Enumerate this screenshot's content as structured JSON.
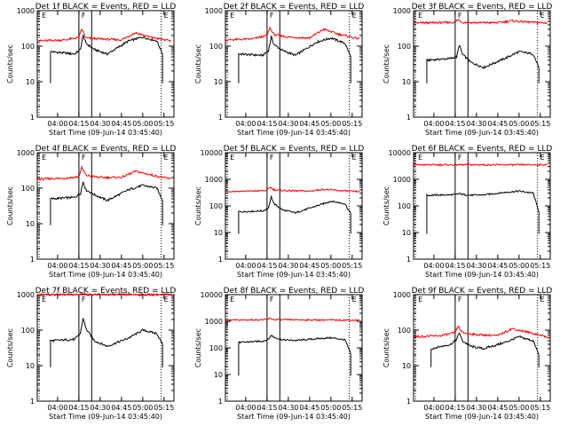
{
  "window": {
    "background": "#ffffff"
  },
  "colors": {
    "events": "#000000",
    "lld": "#ff0000",
    "frame": "#000000"
  },
  "chart_data": [
    {
      "type": "line",
      "title": "Det 1f BLACK = Events, RED = LLD",
      "xlabel": "Start Time (09-Jun-14 03:45:40)",
      "ylabel": "Counts/sec",
      "yscale": "log",
      "ylim": [
        1,
        1000
      ],
      "yticks": [
        "1",
        "10",
        "100",
        "1000"
      ],
      "xlim": [
        "03:45:40",
        "05:22:00"
      ],
      "xticks": [
        "04:00",
        "04:15",
        "04:30",
        "04:45",
        "05:00",
        "05:15"
      ],
      "markers": [
        "E",
        "F",
        "E"
      ],
      "series": [
        {
          "name": "Events",
          "color": "#000000",
          "x": [
            "03:55",
            "04:12",
            "04:16",
            "04:18",
            "04:20",
            "04:26",
            "04:35",
            "04:50",
            "05:00",
            "05:10",
            "05:14"
          ],
          "y": [
            70,
            60,
            80,
            200,
            120,
            80,
            60,
            140,
            180,
            140,
            60
          ]
        },
        {
          "name": "LLD",
          "color": "#ff0000",
          "x": [
            "03:46",
            "04:05",
            "04:15",
            "04:17",
            "04:20",
            "04:30",
            "04:45",
            "04:55",
            "05:05",
            "05:20"
          ],
          "y": [
            140,
            150,
            175,
            300,
            170,
            160,
            150,
            240,
            180,
            140
          ]
        }
      ]
    },
    {
      "type": "line",
      "title": "Det 2f BLACK = Events, RED = LLD",
      "xlabel": "Start Time (09-Jun-14 03:45:40)",
      "ylabel": "Counts/sec",
      "yscale": "log",
      "ylim": [
        1,
        1000
      ],
      "yticks": [
        "1",
        "10",
        "100",
        "1000"
      ],
      "xlim": [
        "03:45:40",
        "05:22:00"
      ],
      "xticks": [
        "04:00",
        "04:15",
        "04:30",
        "04:45",
        "05:00",
        "05:15"
      ],
      "markers": [
        "E",
        "F",
        "E"
      ],
      "series": [
        {
          "name": "Events",
          "color": "#000000",
          "x": [
            "03:55",
            "04:12",
            "04:16",
            "04:18",
            "04:20",
            "04:26",
            "04:35",
            "04:50",
            "05:00",
            "05:10",
            "05:14"
          ],
          "y": [
            60,
            55,
            75,
            180,
            110,
            75,
            55,
            130,
            170,
            120,
            50
          ]
        },
        {
          "name": "LLD",
          "color": "#ff0000",
          "x": [
            "03:46",
            "04:05",
            "04:15",
            "04:17",
            "04:20",
            "04:30",
            "04:45",
            "04:55",
            "05:05",
            "05:20"
          ],
          "y": [
            150,
            160,
            200,
            330,
            210,
            180,
            170,
            300,
            220,
            160
          ]
        }
      ]
    },
    {
      "type": "line",
      "title": "Det 3f BLACK = Events, RED = LLD",
      "xlabel": "Start Time (09-Jun-14 03:45:40)",
      "ylabel": "Counts/sec",
      "yscale": "log",
      "ylim": [
        1,
        1000
      ],
      "yticks": [
        "1",
        "10",
        "100",
        "1000"
      ],
      "xlim": [
        "03:45:40",
        "05:22:00"
      ],
      "xticks": [
        "04:00",
        "04:15",
        "04:30",
        "04:45",
        "05:00",
        "05:15"
      ],
      "markers": [
        "E",
        "F",
        "E"
      ],
      "series": [
        {
          "name": "Events",
          "color": "#000000",
          "x": [
            "03:55",
            "04:12",
            "04:16",
            "04:18",
            "04:20",
            "04:26",
            "04:35",
            "04:50",
            "05:00",
            "05:10",
            "05:14"
          ],
          "y": [
            40,
            45,
            50,
            110,
            60,
            35,
            25,
            45,
            70,
            60,
            25
          ]
        },
        {
          "name": "LLD",
          "color": "#ff0000",
          "x": [
            "03:46",
            "04:05",
            "04:15",
            "04:17",
            "04:20",
            "04:30",
            "04:45",
            "04:55",
            "05:05",
            "05:20"
          ],
          "y": [
            450,
            460,
            470,
            560,
            470,
            460,
            460,
            520,
            480,
            450
          ]
        }
      ]
    },
    {
      "type": "line",
      "title": "Det 4f BLACK = Events, RED = LLD",
      "xlabel": "Start Time (09-Jun-14 03:45:40)",
      "ylabel": "Counts/sec",
      "yscale": "log",
      "ylim": [
        1,
        1000
      ],
      "yticks": [
        "1",
        "10",
        "100",
        "1000"
      ],
      "xlim": [
        "03:45:40",
        "05:22:00"
      ],
      "xticks": [
        "04:00",
        "04:15",
        "04:30",
        "04:45",
        "05:00",
        "05:15"
      ],
      "markers": [
        "E",
        "F",
        "E"
      ],
      "series": [
        {
          "name": "Events",
          "color": "#000000",
          "x": [
            "03:55",
            "04:12",
            "04:16",
            "04:18",
            "04:20",
            "04:26",
            "04:35",
            "04:50",
            "05:00",
            "05:10",
            "05:14"
          ],
          "y": [
            50,
            55,
            70,
            150,
            90,
            65,
            45,
            90,
            120,
            100,
            45
          ]
        },
        {
          "name": "LLD",
          "color": "#ff0000",
          "x": [
            "03:46",
            "04:05",
            "04:15",
            "04:17",
            "04:20",
            "04:30",
            "04:45",
            "04:55",
            "05:05",
            "05:20"
          ],
          "y": [
            180,
            190,
            210,
            380,
            230,
            200,
            200,
            300,
            240,
            180
          ]
        }
      ]
    },
    {
      "type": "line",
      "title": "Det 5f BLACK = Events, RED = LLD",
      "xlabel": "Start Time (09-Jun-14 03:45:40)",
      "ylabel": "Counts/sec",
      "yscale": "log",
      "ylim": [
        1,
        10000
      ],
      "yticks": [
        "1",
        "10",
        "100",
        "1000",
        "10000"
      ],
      "xlim": [
        "03:45:40",
        "05:22:00"
      ],
      "xticks": [
        "04:00",
        "04:15",
        "04:30",
        "04:45",
        "05:00",
        "05:15"
      ],
      "markers": [
        "E",
        "F",
        "E"
      ],
      "series": [
        {
          "name": "Events",
          "color": "#000000",
          "x": [
            "03:55",
            "04:12",
            "04:16",
            "04:18",
            "04:20",
            "04:26",
            "04:35",
            "04:50",
            "05:00",
            "05:10",
            "05:14"
          ],
          "y": [
            60,
            65,
            80,
            220,
            120,
            70,
            55,
            100,
            150,
            120,
            50
          ]
        },
        {
          "name": "LLD",
          "color": "#ff0000",
          "x": [
            "03:46",
            "04:05",
            "04:15",
            "04:17",
            "04:20",
            "04:30",
            "04:45",
            "04:55",
            "05:05",
            "05:20"
          ],
          "y": [
            350,
            360,
            380,
            520,
            400,
            370,
            360,
            420,
            380,
            340
          ]
        }
      ]
    },
    {
      "type": "line",
      "title": "Det 6f BLACK = Events, RED = LLD",
      "xlabel": "Start Time (09-Jun-14 03:45:40)",
      "ylabel": "Counts/sec",
      "yscale": "log",
      "ylim": [
        1,
        10000
      ],
      "yticks": [
        "1",
        "10",
        "100",
        "1000",
        "10000"
      ],
      "xlim": [
        "03:45:40",
        "05:22:00"
      ],
      "xticks": [
        "04:00",
        "04:15",
        "04:30",
        "04:45",
        "05:00",
        "05:15"
      ],
      "markers": [
        "E",
        "F",
        "E"
      ],
      "series": [
        {
          "name": "Events",
          "color": "#000000",
          "x": [
            "03:55",
            "04:12",
            "04:16",
            "04:18",
            "04:20",
            "04:26",
            "04:35",
            "04:50",
            "05:00",
            "05:10",
            "05:14"
          ],
          "y": [
            250,
            260,
            270,
            290,
            270,
            250,
            260,
            320,
            360,
            300,
            60
          ]
        },
        {
          "name": "LLD",
          "color": "#ff0000",
          "x": [
            "03:46",
            "05:20"
          ],
          "y": [
            3500,
            3500
          ]
        }
      ]
    },
    {
      "type": "line",
      "title": "Det 7f BLACK = Events, RED = LLD",
      "xlabel": "Start Time (09-Jun-14 03:45:40)",
      "ylabel": "Counts/sec",
      "yscale": "log",
      "ylim": [
        1,
        1000
      ],
      "yticks": [
        "1",
        "10",
        "100",
        "1000"
      ],
      "xlim": [
        "03:45:40",
        "05:22:00"
      ],
      "xticks": [
        "04:00",
        "04:15",
        "04:30",
        "04:45",
        "05:00",
        "05:15"
      ],
      "markers": [
        "E",
        "F",
        "E"
      ],
      "series": [
        {
          "name": "Events",
          "color": "#000000",
          "x": [
            "03:55",
            "04:12",
            "04:16",
            "04:18",
            "04:20",
            "04:26",
            "04:35",
            "04:50",
            "05:00",
            "05:10",
            "05:14"
          ],
          "y": [
            50,
            55,
            80,
            220,
            110,
            50,
            35,
            60,
            100,
            80,
            40
          ]
        },
        {
          "name": "LLD",
          "color": "#ff0000",
          "x": [
            "03:46",
            "04:15",
            "04:17",
            "04:20",
            "05:20"
          ],
          "y": [
            1000,
            1000,
            1100,
            1000,
            1000
          ]
        }
      ]
    },
    {
      "type": "line",
      "title": "Det 8f BLACK = Events, RED = LLD",
      "xlabel": "Start Time (09-Jun-14 03:45:40)",
      "ylabel": "Counts/sec",
      "yscale": "log",
      "ylim": [
        1,
        10000
      ],
      "yticks": [
        "1",
        "10",
        "100",
        "1000",
        "10000"
      ],
      "xlim": [
        "03:45:40",
        "05:22:00"
      ],
      "xticks": [
        "04:00",
        "04:15",
        "04:30",
        "04:45",
        "05:00",
        "05:15"
      ],
      "markers": [
        "E",
        "F",
        "E"
      ],
      "series": [
        {
          "name": "Events",
          "color": "#000000",
          "x": [
            "03:55",
            "04:12",
            "04:16",
            "04:18",
            "04:20",
            "04:26",
            "04:35",
            "04:50",
            "05:00",
            "05:10",
            "05:14"
          ],
          "y": [
            160,
            180,
            210,
            300,
            250,
            200,
            190,
            220,
            240,
            200,
            60
          ]
        },
        {
          "name": "LLD",
          "color": "#ff0000",
          "x": [
            "03:46",
            "04:15",
            "04:17",
            "04:20",
            "05:20"
          ],
          "y": [
            1100,
            1150,
            1300,
            1150,
            1100
          ]
        }
      ]
    },
    {
      "type": "line",
      "title": "Det 9f BLACK = Events, RED = LLD",
      "xlabel": "Start Time (09-Jun-14 03:45:40)",
      "ylabel": "Counts/sec",
      "yscale": "log",
      "ylim": [
        1,
        1000
      ],
      "yticks": [
        "1",
        "10",
        "100",
        "1000"
      ],
      "xlim": [
        "03:45:40",
        "05:22:00"
      ],
      "xticks": [
        "04:00",
        "04:15",
        "04:30",
        "04:45",
        "05:00",
        "05:15"
      ],
      "markers": [
        "E",
        "F",
        "E"
      ],
      "series": [
        {
          "name": "Events",
          "color": "#000000",
          "x": [
            "03:58",
            "04:12",
            "04:16",
            "04:18",
            "04:20",
            "04:26",
            "04:35",
            "04:50",
            "05:00",
            "05:10",
            "05:14"
          ],
          "y": [
            30,
            40,
            55,
            85,
            50,
            35,
            30,
            45,
            65,
            50,
            20
          ]
        },
        {
          "name": "LLD",
          "color": "#ff0000",
          "x": [
            "03:46",
            "04:05",
            "04:15",
            "04:17",
            "04:20",
            "04:30",
            "04:45",
            "04:55",
            "05:05",
            "05:20"
          ],
          "y": [
            65,
            70,
            85,
            130,
            85,
            75,
            70,
            110,
            90,
            65
          ]
        }
      ]
    }
  ]
}
